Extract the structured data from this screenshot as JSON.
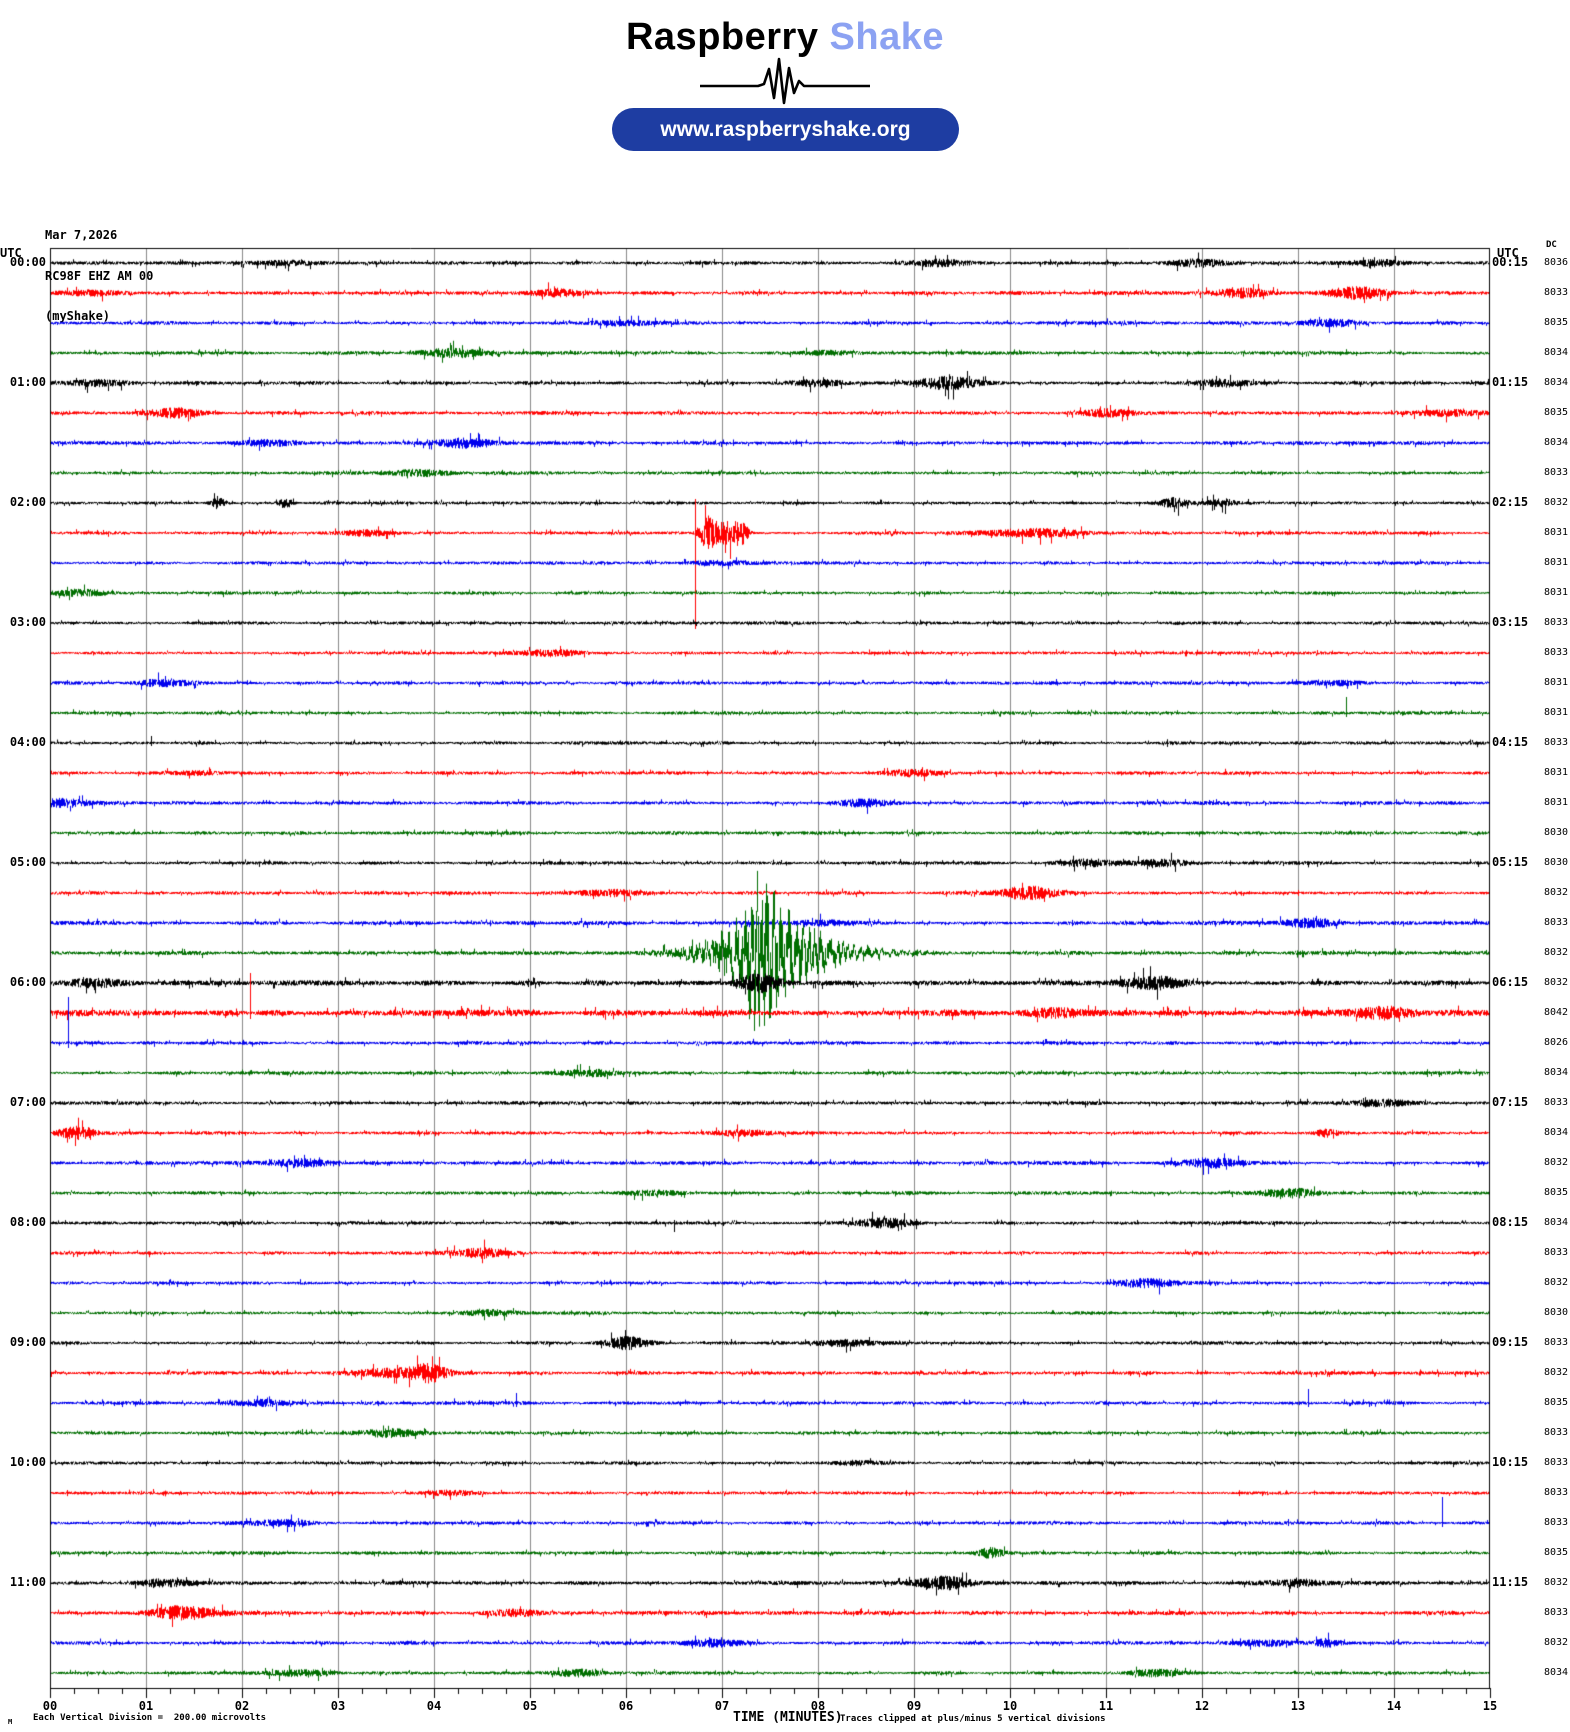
{
  "header": {
    "logo_primary": "Raspberry",
    "logo_accent": "Shake",
    "logo_accent_color": "#8CA2F2",
    "url_pill_text": "www.raspberryshake.org",
    "url_pill_color": "#1e3da2"
  },
  "station": {
    "date": "Mar 7,2026",
    "id": "RC98F EHZ AM 00",
    "network": "(myShake)"
  },
  "labels": {
    "utc_left_header": "UTC",
    "utc_right_header": "UTC",
    "dc_header": "DC"
  },
  "footer": {
    "scale_mark": "M",
    "left_text": "Each Vertical Division =  200.00 microvolts",
    "x_title": "TIME (MINUTES)",
    "clip_note": "Traces clipped at plus/minus 5 vertical divisions"
  },
  "chart_data": {
    "type": "line",
    "subtype": "helicorder-seismogram",
    "title": "RC98F EHZ AM 00 (myShake) Mar 7,2026",
    "xlabel": "TIME (MINUTES)",
    "x_range_minutes": [
      0,
      15
    ],
    "x_tick_labels": [
      "00",
      "01",
      "02",
      "03",
      "04",
      "05",
      "06",
      "07",
      "08",
      "09",
      "10",
      "11",
      "12",
      "13",
      "14",
      "15"
    ],
    "minor_tick_minutes": 0.25,
    "row_duration_minutes": 15,
    "clip_divisions": 5,
    "microvolts_per_division": 200.0,
    "grid": true,
    "colors": {
      "black": "#000000",
      "red": "#ff0000",
      "blue": "#0000ee",
      "green": "#006e00",
      "grid": "#878787"
    },
    "rows": [
      {
        "utc_left": "00:00",
        "utc_right": "00:15",
        "dc": 8036,
        "color": "black",
        "noise": 1.0,
        "events": [
          [
            2.5,
            "b",
            2
          ],
          [
            9.3,
            "b",
            3
          ],
          [
            12.0,
            "b",
            3
          ],
          [
            13.8,
            "b",
            3
          ]
        ]
      },
      {
        "utc_left": null,
        "utc_right": null,
        "dc": 8033,
        "color": "red",
        "noise": 1.05,
        "events": [
          [
            0.4,
            "b",
            2
          ],
          [
            5.3,
            "b",
            3
          ],
          [
            12.4,
            "b",
            4
          ],
          [
            13.6,
            "b",
            5
          ]
        ]
      },
      {
        "utc_left": null,
        "utc_right": null,
        "dc": 8035,
        "color": "blue",
        "noise": 1.0,
        "events": [
          [
            6.0,
            "b",
            2
          ],
          [
            13.3,
            "b",
            3
          ]
        ]
      },
      {
        "utc_left": null,
        "utc_right": null,
        "dc": 8034,
        "color": "green",
        "noise": 0.95,
        "events": [
          [
            4.2,
            "b",
            4
          ],
          [
            8.1,
            "b",
            2
          ]
        ]
      },
      {
        "utc_left": "01:00",
        "utc_right": "01:15",
        "dc": 8034,
        "color": "black",
        "noise": 1.0,
        "events": [
          [
            0.5,
            "b",
            3
          ],
          [
            8.0,
            "b",
            3
          ],
          [
            9.35,
            "b",
            6
          ],
          [
            12.2,
            "b",
            3
          ]
        ]
      },
      {
        "utc_left": null,
        "utc_right": null,
        "dc": 8035,
        "color": "red",
        "noise": 1.05,
        "events": [
          [
            1.3,
            "b",
            4
          ],
          [
            11.0,
            "b",
            3
          ],
          [
            14.6,
            "b",
            3
          ]
        ]
      },
      {
        "utc_left": null,
        "utc_right": null,
        "dc": 8034,
        "color": "blue",
        "noise": 1.0,
        "events": [
          [
            2.3,
            "b",
            3
          ],
          [
            4.3,
            "b",
            4
          ]
        ]
      },
      {
        "utc_left": null,
        "utc_right": null,
        "dc": 8033,
        "color": "green",
        "noise": 0.95,
        "events": [
          [
            3.8,
            "b",
            3
          ]
        ]
      },
      {
        "utc_left": "02:00",
        "utc_right": "02:15",
        "dc": 8032,
        "color": "black",
        "noise": 0.9,
        "events": [
          [
            1.75,
            "b",
            6,
            0.05
          ],
          [
            2.45,
            "b",
            5,
            0.05
          ],
          [
            11.7,
            "b",
            5,
            0.1
          ],
          [
            12.2,
            "b",
            4,
            0.1
          ]
        ]
      },
      {
        "utc_left": null,
        "utc_right": null,
        "dc": 8031,
        "color": "red",
        "noise": 0.9,
        "events": [
          [
            6.72,
            "s",
            34,
            96
          ],
          [
            6.85,
            "b",
            16,
            0.06
          ],
          [
            7.05,
            "b",
            11,
            0.1
          ],
          [
            7.2,
            "b",
            9,
            0.05
          ],
          [
            3.3,
            "b",
            3
          ],
          [
            10.2,
            "b",
            4,
            0.35
          ]
        ]
      },
      {
        "utc_left": null,
        "utc_right": null,
        "dc": 8031,
        "color": "blue",
        "noise": 0.9,
        "events": [
          [
            7.0,
            "b",
            2
          ]
        ]
      },
      {
        "utc_left": null,
        "utc_right": null,
        "dc": 8031,
        "color": "green",
        "noise": 0.9,
        "events": [
          [
            0.3,
            "b",
            3
          ]
        ]
      },
      {
        "utc_left": "03:00",
        "utc_right": "03:15",
        "dc": 8033,
        "color": "black",
        "noise": 0.9,
        "events": []
      },
      {
        "utc_left": null,
        "utc_right": null,
        "dc": 8033,
        "color": "red",
        "noise": 0.9,
        "events": [
          [
            5.2,
            "b",
            3
          ]
        ]
      },
      {
        "utc_left": null,
        "utc_right": null,
        "dc": 8031,
        "color": "blue",
        "noise": 0.95,
        "events": [
          [
            1.2,
            "b",
            3
          ],
          [
            13.4,
            "b",
            2
          ]
        ]
      },
      {
        "utc_left": null,
        "utc_right": null,
        "dc": 8031,
        "color": "green",
        "noise": 0.9,
        "events": [
          [
            13.5,
            "s",
            16,
            4
          ]
        ]
      },
      {
        "utc_left": "04:00",
        "utc_right": "04:15",
        "dc": 8033,
        "color": "black",
        "noise": 0.95,
        "events": [
          [
            1.05,
            "s",
            7,
            3
          ]
        ]
      },
      {
        "utc_left": null,
        "utc_right": null,
        "dc": 8031,
        "color": "red",
        "noise": 0.95,
        "events": [
          [
            1.5,
            "b",
            2
          ],
          [
            9.0,
            "b",
            3
          ]
        ]
      },
      {
        "utc_left": null,
        "utc_right": null,
        "dc": 8031,
        "color": "blue",
        "noise": 1.0,
        "events": [
          [
            0.15,
            "b",
            4
          ],
          [
            8.5,
            "b",
            3
          ]
        ]
      },
      {
        "utc_left": null,
        "utc_right": null,
        "dc": 8030,
        "color": "green",
        "noise": 0.95,
        "events": []
      },
      {
        "utc_left": "05:00",
        "utc_right": "05:15",
        "dc": 8030,
        "color": "black",
        "noise": 0.95,
        "events": [
          [
            10.8,
            "b",
            3
          ],
          [
            11.6,
            "b",
            3
          ]
        ]
      },
      {
        "utc_left": null,
        "utc_right": null,
        "dc": 8032,
        "color": "red",
        "noise": 1.0,
        "events": [
          [
            5.8,
            "b",
            3
          ],
          [
            10.2,
            "b",
            6
          ]
        ]
      },
      {
        "utc_left": null,
        "utc_right": null,
        "dc": 8033,
        "color": "blue",
        "noise": 1.1,
        "events": [
          [
            8.0,
            "b",
            2
          ],
          [
            13.1,
            "b",
            4
          ]
        ]
      },
      {
        "utc_left": null,
        "utc_right": null,
        "dc": 8032,
        "color": "green",
        "noise": 1.1,
        "events": [
          [
            6.9,
            "b",
            6,
            0.3
          ],
          [
            7.38,
            "q",
            74
          ]
        ]
      },
      {
        "utc_left": "06:00",
        "utc_right": "06:15",
        "dc": 8032,
        "color": "black",
        "noise": 1.45,
        "events": [
          [
            0.5,
            "b",
            3
          ],
          [
            7.38,
            "b",
            8,
            0.15
          ],
          [
            11.5,
            "b",
            5
          ]
        ]
      },
      {
        "utc_left": null,
        "utc_right": null,
        "dc": 8042,
        "color": "red",
        "noise": 1.8,
        "events": [
          [
            2.08,
            "s",
            40,
            6
          ],
          [
            10.5,
            "b",
            4
          ],
          [
            13.9,
            "b",
            5
          ]
        ]
      },
      {
        "utc_left": null,
        "utc_right": null,
        "dc": 8026,
        "color": "blue",
        "noise": 1.0,
        "events": [
          [
            0.19,
            "s",
            46,
            5
          ]
        ]
      },
      {
        "utc_left": null,
        "utc_right": null,
        "dc": 8034,
        "color": "green",
        "noise": 0.95,
        "events": [
          [
            5.6,
            "b",
            3
          ]
        ]
      },
      {
        "utc_left": "07:00",
        "utc_right": "07:15",
        "dc": 8033,
        "color": "black",
        "noise": 1.0,
        "events": [
          [
            13.9,
            "b",
            3
          ]
        ]
      },
      {
        "utc_left": null,
        "utc_right": null,
        "dc": 8034,
        "color": "red",
        "noise": 0.95,
        "events": [
          [
            0.3,
            "b",
            6,
            0.15
          ],
          [
            7.2,
            "b",
            3
          ],
          [
            13.3,
            "b",
            4,
            0.08
          ]
        ]
      },
      {
        "utc_left": null,
        "utc_right": null,
        "dc": 8032,
        "color": "blue",
        "noise": 1.0,
        "events": [
          [
            2.6,
            "b",
            4
          ],
          [
            12.1,
            "b",
            4
          ]
        ]
      },
      {
        "utc_left": null,
        "utc_right": null,
        "dc": 8035,
        "color": "green",
        "noise": 1.0,
        "events": [
          [
            6.3,
            "b",
            2
          ],
          [
            12.9,
            "b",
            4
          ]
        ]
      },
      {
        "utc_left": "08:00",
        "utc_right": "08:15",
        "dc": 8034,
        "color": "black",
        "noise": 0.95,
        "events": [
          [
            6.5,
            "s",
            3,
            9
          ],
          [
            8.7,
            "b",
            4
          ]
        ]
      },
      {
        "utc_left": null,
        "utc_right": null,
        "dc": 8033,
        "color": "red",
        "noise": 0.95,
        "events": [
          [
            4.5,
            "b",
            4
          ]
        ]
      },
      {
        "utc_left": null,
        "utc_right": null,
        "dc": 8032,
        "color": "blue",
        "noise": 0.9,
        "events": [
          [
            11.4,
            "b",
            4
          ]
        ]
      },
      {
        "utc_left": null,
        "utc_right": null,
        "dc": 8030,
        "color": "green",
        "noise": 0.9,
        "events": [
          [
            4.6,
            "b",
            3
          ]
        ]
      },
      {
        "utc_left": "09:00",
        "utc_right": "09:15",
        "dc": 8033,
        "color": "black",
        "noise": 0.95,
        "events": [
          [
            6.0,
            "b",
            6,
            0.15
          ],
          [
            8.3,
            "b",
            3
          ]
        ]
      },
      {
        "utc_left": null,
        "utc_right": null,
        "dc": 8032,
        "color": "red",
        "noise": 1.0,
        "events": [
          [
            3.6,
            "b",
            4,
            0.3
          ],
          [
            3.95,
            "b",
            7,
            0.12
          ]
        ]
      },
      {
        "utc_left": null,
        "utc_right": null,
        "dc": 8035,
        "color": "blue",
        "noise": 1.0,
        "events": [
          [
            2.2,
            "b",
            3
          ],
          [
            4.85,
            "s",
            10,
            4
          ],
          [
            13.1,
            "s",
            14,
            4
          ]
        ]
      },
      {
        "utc_left": null,
        "utc_right": null,
        "dc": 8033,
        "color": "green",
        "noise": 0.95,
        "events": [
          [
            3.5,
            "b",
            4
          ]
        ]
      },
      {
        "utc_left": "10:00",
        "utc_right": "10:15",
        "dc": 8033,
        "color": "black",
        "noise": 0.9,
        "events": [
          [
            8.4,
            "b",
            2
          ]
        ]
      },
      {
        "utc_left": null,
        "utc_right": null,
        "dc": 8033,
        "color": "red",
        "noise": 0.9,
        "events": [
          [
            4.2,
            "b",
            2
          ]
        ]
      },
      {
        "utc_left": null,
        "utc_right": null,
        "dc": 8033,
        "color": "blue",
        "noise": 0.9,
        "events": [
          [
            2.4,
            "b",
            3
          ],
          [
            14.5,
            "s",
            26,
            4
          ]
        ]
      },
      {
        "utc_left": null,
        "utc_right": null,
        "dc": 8035,
        "color": "green",
        "noise": 0.95,
        "events": [
          [
            9.8,
            "b",
            5,
            0.1
          ]
        ]
      },
      {
        "utc_left": "11:00",
        "utc_right": "11:15",
        "dc": 8032,
        "color": "black",
        "noise": 1.1,
        "events": [
          [
            1.2,
            "b",
            3
          ],
          [
            9.3,
            "b",
            6,
            0.2
          ],
          [
            13.0,
            "b",
            3
          ]
        ]
      },
      {
        "utc_left": null,
        "utc_right": null,
        "dc": 8033,
        "color": "red",
        "noise": 1.1,
        "events": [
          [
            1.4,
            "b",
            6,
            0.25
          ],
          [
            4.8,
            "b",
            3
          ]
        ]
      },
      {
        "utc_left": null,
        "utc_right": null,
        "dc": 8032,
        "color": "blue",
        "noise": 1.0,
        "events": [
          [
            6.9,
            "b",
            3
          ],
          [
            12.6,
            "b",
            3
          ],
          [
            13.3,
            "b",
            4,
            0.1
          ]
        ]
      },
      {
        "utc_left": null,
        "utc_right": null,
        "dc": 8034,
        "color": "green",
        "noise": 0.9,
        "events": [
          [
            2.6,
            "b",
            3
          ],
          [
            5.5,
            "b",
            3
          ],
          [
            11.5,
            "b",
            3
          ]
        ]
      }
    ]
  }
}
